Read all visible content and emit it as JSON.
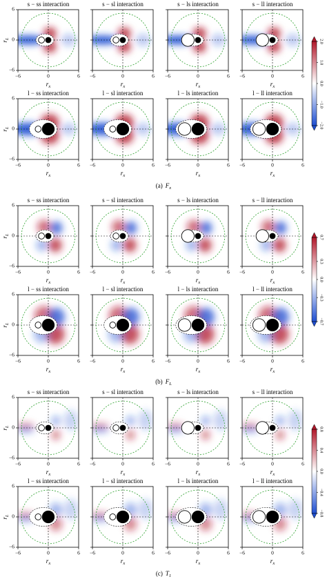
{
  "chart_data": [
    {
      "type": "heatmap",
      "caption": "(a)",
      "quantity": "F",
      "quantity_sub": "x",
      "titles": [
        "s − ss interaction",
        "s − sl interaction",
        "s − ls interaction",
        "s − ll interaction",
        "l − ss interaction",
        "l − sl interaction",
        "l − ls interaction",
        "l − ll interaction"
      ],
      "xlabel": "r",
      "xlabel_sub": "x",
      "ylabel": "r",
      "ylabel_sub": "L",
      "xlim": [
        -6,
        6
      ],
      "xticks": [
        {
          "value": -6,
          "label": "−6"
        },
        0,
        6
      ],
      "ylim": [
        -6,
        6
      ],
      "yticks": [
        6,
        0,
        {
          "value": -6,
          "label": "−6"
        }
      ],
      "clim": [
        -2,
        2
      ],
      "cticks": [
        {
          "value": 2,
          "label": "2.0"
        },
        {
          "value": 1,
          "label": "1.0"
        },
        {
          "value": 0,
          "label": "0.0"
        },
        {
          "value": -1,
          "label": "−1.0"
        },
        {
          "value": -2,
          "label": "−2.0"
        }
      ],
      "colormap": [
        "#b2182b",
        "#ffffff",
        "#1f4fd1"
      ]
    },
    {
      "type": "heatmap",
      "caption": "(b)",
      "quantity": "F",
      "quantity_sub": "L",
      "titles": [
        "s − ss interaction",
        "s − sl interaction",
        "s − ls interaction",
        "s − ll interaction",
        "l − ss interaction",
        "l − sl interaction",
        "l − ls interaction",
        "l − ll interaction"
      ],
      "xlabel": "r",
      "xlabel_sub": "x",
      "ylabel": "r",
      "ylabel_sub": "L",
      "xlim": [
        -6,
        6
      ],
      "xticks": [
        {
          "value": -6,
          "label": "−6"
        },
        0,
        6
      ],
      "ylim": [
        -6,
        6
      ],
      "yticks": [
        6,
        0,
        {
          "value": -6,
          "label": "−6"
        }
      ],
      "clim": [
        -0.7,
        0.7
      ],
      "cticks": [
        0.7,
        0.3,
        {
          "value": 0,
          "label": "0.0"
        },
        {
          "value": -0.3,
          "label": "−0.3"
        },
        {
          "value": -0.7,
          "label": "−0.7"
        }
      ],
      "colormap": [
        "#b2182b",
        "#ffffff",
        "#1f4fd1"
      ]
    },
    {
      "type": "heatmap",
      "caption": "(c)",
      "quantity": "T",
      "quantity_sub": "1",
      "titles": [
        "s − ss interaction",
        "s − sl interaction",
        "s − ls interaction",
        "s − ll interaction",
        "l − ss interaction",
        "l − sl interaction",
        "l − ls interaction",
        "l − ll interaction"
      ],
      "xlabel": "r",
      "xlabel_sub": "x",
      "ylabel": "r",
      "ylabel_sub": "L",
      "xlim": [
        -6,
        6
      ],
      "xticks": [
        {
          "value": -6,
          "label": "−6"
        },
        0,
        6
      ],
      "ylim": [
        -6,
        6
      ],
      "yticks": [
        6,
        0,
        {
          "value": -6,
          "label": "−6"
        }
      ],
      "clim": [
        -0.8,
        0.8
      ],
      "cticks": [
        0.8,
        0.4,
        {
          "value": 0,
          "label": "0.0"
        },
        {
          "value": -0.4,
          "label": "−0.4"
        },
        {
          "value": -0.8,
          "label": "−0.8"
        }
      ],
      "colormap": [
        "#b2182b",
        "#ffffff",
        "#1f4fd1"
      ]
    }
  ]
}
